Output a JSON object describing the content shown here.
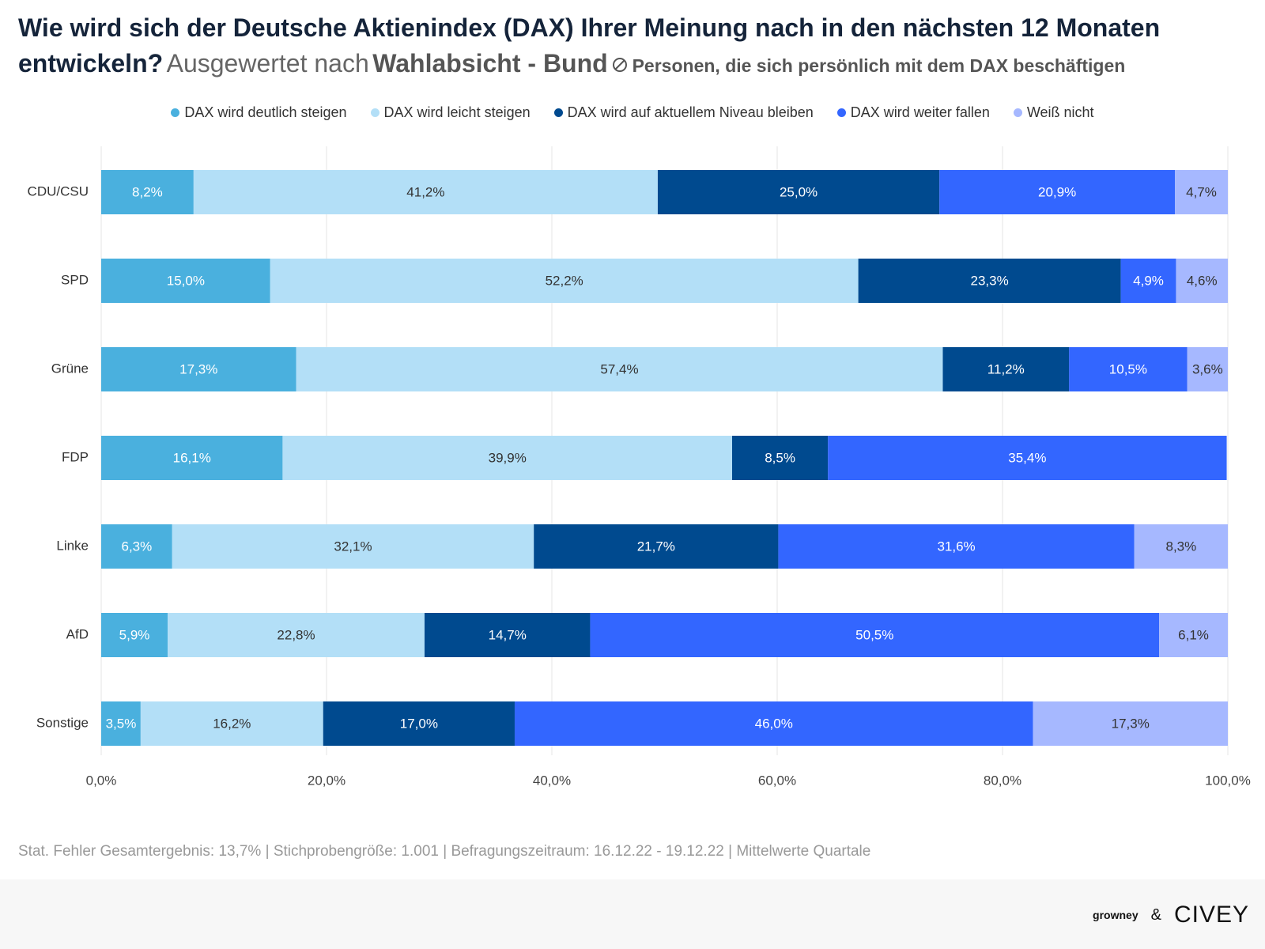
{
  "title": "Wie wird sich der Deutsche Aktienindex (DAX) Ihrer Meinung nach in den nächsten 12 Monaten entwickeln?",
  "subtitle": "Ausgewertet nach",
  "subtitle_group": "Wahlabsicht - Bund",
  "filter": "Personen, die sich persönlich mit dem DAX beschäftigen",
  "chart_data": {
    "type": "stacked-bar-horizontal",
    "categories": [
      "CDU/CSU",
      "SPD",
      "Grüne",
      "FDP",
      "Linke",
      "AfD",
      "Sonstige"
    ],
    "series": [
      {
        "name": "DAX wird deutlich steigen",
        "color": "#4ab0de",
        "values": [
          8.2,
          15.0,
          17.3,
          16.1,
          6.3,
          5.9,
          3.5
        ],
        "value_labels": [
          "8,2%",
          "15,0%",
          "17,3%",
          "16,1%",
          "6,3%",
          "5,9%",
          "3,5%"
        ]
      },
      {
        "name": "DAX wird leicht steigen",
        "color": "#b3dff7",
        "values": [
          41.2,
          52.2,
          57.4,
          39.9,
          32.1,
          22.8,
          16.2
        ],
        "value_labels": [
          "41,2%",
          "52,2%",
          "57,4%",
          "39,9%",
          "32,1%",
          "22,8%",
          "16,2%"
        ]
      },
      {
        "name": "DAX wird auf aktuellem Niveau bleiben",
        "color": "#004a8f",
        "values": [
          25.0,
          23.3,
          11.2,
          8.5,
          21.7,
          14.7,
          17.0
        ],
        "value_labels": [
          "25,0%",
          "23,3%",
          "11,2%",
          "8,5%",
          "21,7%",
          "14,7%",
          "17,0%"
        ]
      },
      {
        "name": "DAX wird weiter fallen",
        "color": "#3366ff",
        "values": [
          20.9,
          4.9,
          10.5,
          35.4,
          31.6,
          50.5,
          46.0
        ],
        "value_labels": [
          "20,9%",
          "4,9%",
          "10,5%",
          "35,4%",
          "31,6%",
          "50,5%",
          "46,0%"
        ]
      },
      {
        "name": "Weiß nicht",
        "color": "#a6b8ff",
        "values": [
          4.7,
          4.6,
          3.6,
          null,
          8.3,
          6.1,
          17.3
        ],
        "value_labels": [
          "4,7%",
          "4,6%",
          "3,6%",
          null,
          "8,3%",
          "6,1%",
          "17,3%"
        ]
      }
    ],
    "xlim": [
      0,
      100
    ],
    "xticks": [
      {
        "value": 0,
        "label": "0,0%"
      },
      {
        "value": 20,
        "label": "20,0%"
      },
      {
        "value": 40,
        "label": "40,0%"
      },
      {
        "value": 60,
        "label": "60,0%"
      },
      {
        "value": 80,
        "label": "80,0%"
      },
      {
        "value": 100,
        "label": "100,0%"
      }
    ],
    "grid": true
  },
  "footer": "Stat. Fehler Gesamtergebnis: 13,7% | Stichprobengröße: 1.001 | Befragungszeitraum: 16.12.22 - 19.12.22 | Mittelwerte Quartale",
  "logos": [
    "growney",
    "&",
    "CIVEY"
  ]
}
